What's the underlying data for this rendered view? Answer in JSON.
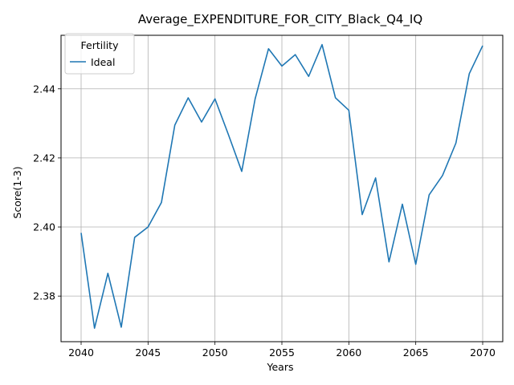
{
  "chart_data": {
    "type": "line",
    "title": "Average_EXPENDITURE_FOR_CITY_Black_Q4_IQ",
    "xlabel": "Years",
    "ylabel": "Score(1-3)",
    "xlim": [
      2038.5,
      2071.5
    ],
    "ylim": [
      2.3668,
      2.4555
    ],
    "xticks": [
      2040,
      2045,
      2050,
      2055,
      2060,
      2065,
      2070
    ],
    "yticks": [
      2.38,
      2.4,
      2.42,
      2.44
    ],
    "grid": true,
    "legend": {
      "title": "Fertility",
      "placement": "top-left"
    },
    "series": [
      {
        "name": "Ideal",
        "color": "#1f77b4",
        "x": [
          2040,
          2041,
          2042,
          2043,
          2044,
          2045,
          2046,
          2047,
          2048,
          2049,
          2050,
          2051,
          2052,
          2053,
          2054,
          2055,
          2056,
          2057,
          2058,
          2059,
          2060,
          2061,
          2062,
          2063,
          2064,
          2065,
          2066,
          2067,
          2068,
          2069,
          2070
        ],
        "values": [
          2.3983,
          2.3707,
          2.3866,
          2.371,
          2.397,
          2.4,
          2.4071,
          2.4295,
          2.4374,
          2.4304,
          2.4371,
          2.4268,
          2.4161,
          2.4371,
          2.4516,
          2.4466,
          2.4499,
          2.4436,
          2.4528,
          2.4374,
          2.4338,
          2.4036,
          2.4142,
          2.3899,
          2.4066,
          2.3892,
          2.4093,
          2.4149,
          2.4243,
          2.4444,
          2.4525
        ]
      }
    ]
  }
}
